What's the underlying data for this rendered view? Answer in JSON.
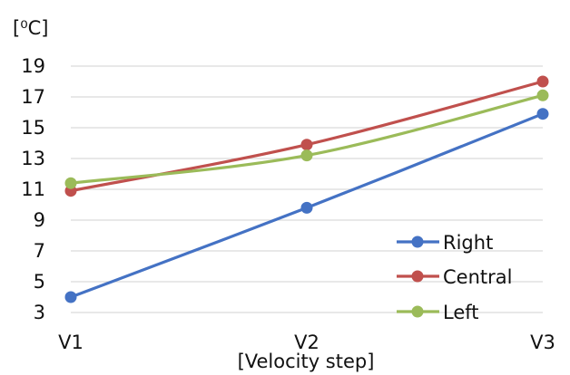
{
  "chart_data": {
    "type": "line",
    "ylabel": "[⁰C]",
    "xlabel": "[Velocity step]",
    "categories": [
      "V1",
      "V2",
      "V3"
    ],
    "ylim": [
      3,
      19
    ],
    "yticks": [
      "3",
      "5",
      "7",
      "9",
      "11",
      "13",
      "15",
      "17",
      "19"
    ],
    "grid": true,
    "legend_position": "bottom-right",
    "series": [
      {
        "name": "Right",
        "color": "#4472C4",
        "values": [
          4.0,
          9.8,
          15.9
        ]
      },
      {
        "name": "Central",
        "color": "#C0504D",
        "values": [
          10.9,
          13.9,
          18.0
        ]
      },
      {
        "name": "Left",
        "color": "#9BBB59",
        "values": [
          11.4,
          13.2,
          17.1
        ]
      }
    ]
  }
}
